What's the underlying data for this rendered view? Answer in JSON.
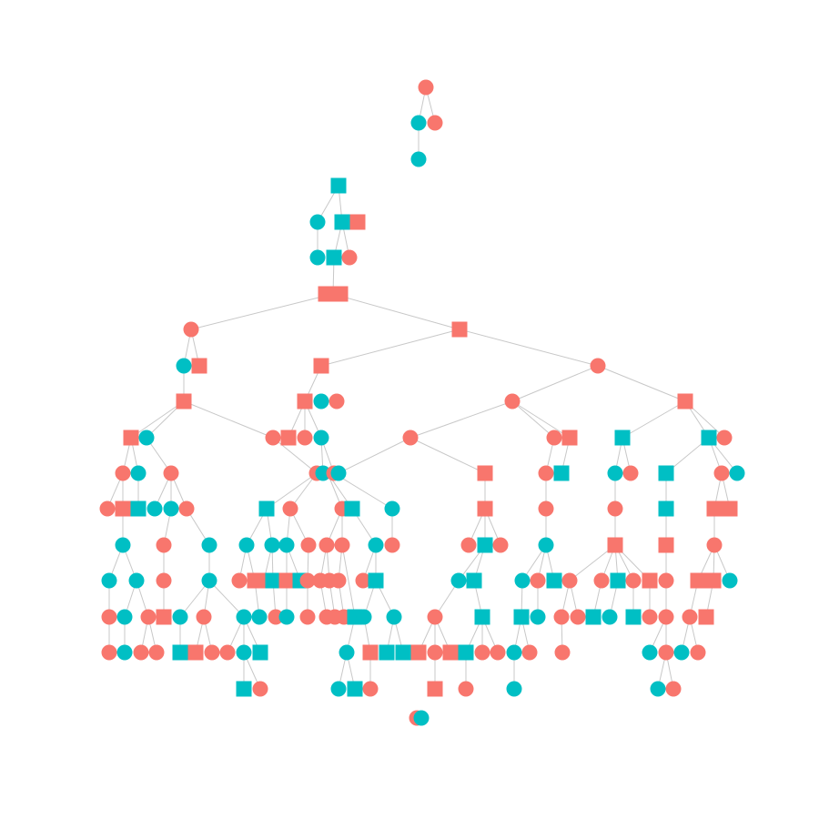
{
  "colors": {
    "female": "#F8766D",
    "male": "#00BFC4",
    "edge": "#c8c8c8"
  },
  "legend": {
    "circle": "circle-node",
    "square": "square-node"
  },
  "pedigree": {
    "nodes": [
      {
        "id": "n1",
        "shape": "circle",
        "color": "female",
        "name": "pedigree-node"
      },
      {
        "id": "n2",
        "shape": "circle",
        "color": "male",
        "name": "pedigree-node"
      },
      {
        "id": "n3",
        "shape": "circle",
        "color": "female",
        "name": "pedigree-node"
      },
      {
        "id": "n4",
        "shape": "circle",
        "color": "male",
        "name": "pedigree-node"
      },
      {
        "id": "n5",
        "shape": "square",
        "color": "male",
        "name": "pedigree-node"
      },
      {
        "id": "n6",
        "shape": "circle",
        "color": "male",
        "name": "pedigree-node"
      },
      {
        "id": "n7",
        "shape": "square",
        "color": "male",
        "name": "pedigree-node"
      },
      {
        "id": "n8",
        "shape": "square",
        "color": "female",
        "name": "pedigree-node"
      },
      {
        "id": "n9",
        "shape": "circle",
        "color": "male",
        "name": "pedigree-node"
      },
      {
        "id": "n10",
        "shape": "square",
        "color": "male",
        "name": "pedigree-node"
      },
      {
        "id": "n11",
        "shape": "circle",
        "color": "female",
        "name": "pedigree-node"
      },
      {
        "id": "n12",
        "shape": "square",
        "color": "female",
        "name": "pedigree-node"
      },
      {
        "id": "n13",
        "shape": "square",
        "color": "female",
        "name": "pedigree-node"
      },
      {
        "id": "n14",
        "shape": "circle",
        "color": "female",
        "name": "pedigree-node"
      },
      {
        "id": "n15",
        "shape": "square",
        "color": "female",
        "name": "pedigree-node"
      },
      {
        "id": "n16",
        "shape": "circle",
        "color": "male",
        "name": "pedigree-node"
      },
      {
        "id": "n17",
        "shape": "square",
        "color": "female",
        "name": "pedigree-node"
      },
      {
        "id": "n18",
        "shape": "square",
        "color": "female",
        "name": "pedigree-node"
      },
      {
        "id": "n19",
        "shape": "circle",
        "color": "female",
        "name": "pedigree-node"
      },
      {
        "id": "n20",
        "shape": "square",
        "color": "female",
        "name": "pedigree-node"
      },
      {
        "id": "n21",
        "shape": "circle",
        "color": "male",
        "name": "pedigree-node"
      },
      {
        "id": "n22",
        "shape": "circle",
        "color": "female",
        "name": "pedigree-node"
      },
      {
        "id": "n23",
        "shape": "circle",
        "color": "female",
        "name": "pedigree-node"
      },
      {
        "id": "n24",
        "shape": "square",
        "color": "female",
        "name": "pedigree-node"
      },
      {
        "id": "n25",
        "shape": "square",
        "color": "female",
        "name": "pedigree-node"
      },
      {
        "id": "n26",
        "shape": "circle",
        "color": "male",
        "name": "pedigree-node"
      },
      {
        "id": "n27",
        "shape": "circle",
        "color": "female",
        "name": "pedigree-node"
      },
      {
        "id": "n28",
        "shape": "square",
        "color": "female",
        "name": "pedigree-node"
      },
      {
        "id": "n29",
        "shape": "circle",
        "color": "female",
        "name": "pedigree-node"
      },
      {
        "id": "n30",
        "shape": "circle",
        "color": "male",
        "name": "pedigree-node"
      },
      {
        "id": "n31",
        "shape": "circle",
        "color": "female",
        "name": "pedigree-node"
      },
      {
        "id": "n32",
        "shape": "square",
        "color": "female",
        "name": "pedigree-node"
      },
      {
        "id": "n33",
        "shape": "circle",
        "color": "female",
        "name": "pedigree-node"
      },
      {
        "id": "n34",
        "shape": "square",
        "color": "female",
        "name": "pedigree-node"
      },
      {
        "id": "n35",
        "shape": "square",
        "color": "male",
        "name": "pedigree-node"
      },
      {
        "id": "n36",
        "shape": "square",
        "color": "male",
        "name": "pedigree-node"
      },
      {
        "id": "n37",
        "shape": "circle",
        "color": "female",
        "name": "pedigree-node"
      }
    ]
  }
}
